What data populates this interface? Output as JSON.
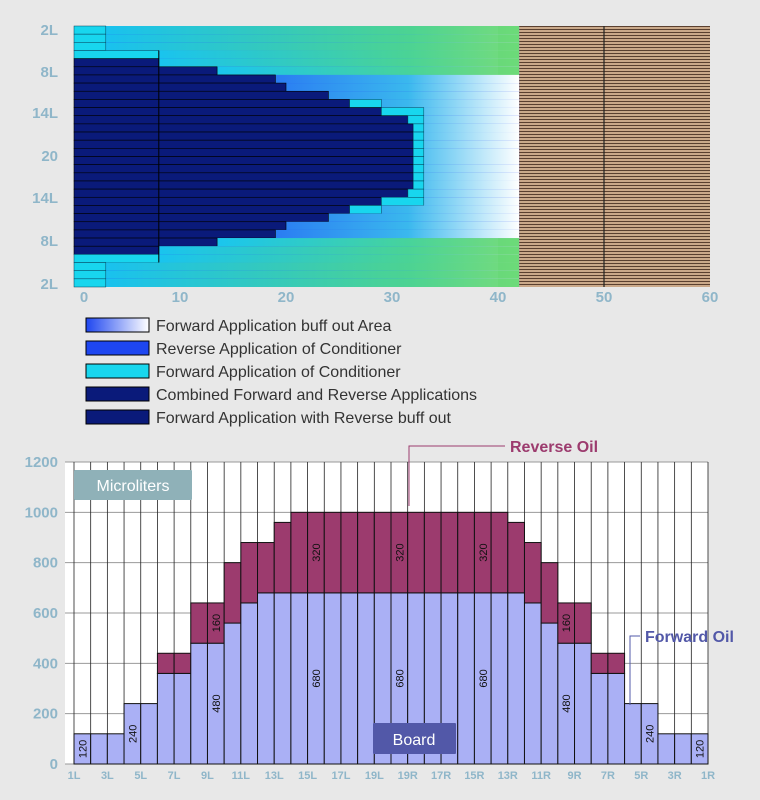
{
  "chart_data": [
    {
      "type": "heatmap",
      "x_ticks": [
        "0",
        "10",
        "20",
        "30",
        "40",
        "50",
        "60"
      ],
      "y_labels": [
        "2L",
        "8L",
        "14L",
        "20",
        "14L",
        "8L",
        "2L"
      ],
      "xlim": [
        0,
        60
      ],
      "legend": [
        "Forward Application buff out Area",
        "Reverse Application of Conditioner",
        "Forward Application of Conditioner",
        "Combined Forward and Reverse Applications",
        "Forward Application with Reverse buff out"
      ],
      "colors": {
        "navy": "#0a1a7a",
        "cyan": "#18d6ee",
        "blue": "#1e46f0",
        "green": "#5cd66a",
        "wood": "#c8a888"
      },
      "rows": [
        {
          "navy": 0,
          "cyan": 3,
          "fade_end": 42
        },
        {
          "navy": 0,
          "cyan": 3,
          "fade_end": 42
        },
        {
          "navy": 0,
          "cyan": 3,
          "fade_end": 42
        },
        {
          "navy": 0,
          "cyan": 8,
          "fade_end": 42
        },
        {
          "navy": 8,
          "cyan": 8,
          "fade_end": 42
        },
        {
          "navy": 13.5,
          "cyan": 13.5,
          "fade_end": 42
        },
        {
          "navy": 19,
          "cyan": 19,
          "fade_end": 42
        },
        {
          "navy": 20,
          "cyan": 20,
          "fade_end": 42
        },
        {
          "navy": 24,
          "cyan": 24,
          "fade_end": 42
        },
        {
          "navy": 26,
          "cyan": 29,
          "fade_end": 42
        },
        {
          "navy": 29,
          "cyan": 33,
          "fade_end": 42
        },
        {
          "navy": 31.5,
          "cyan": 33,
          "fade_end": 42
        },
        {
          "navy": 32,
          "cyan": 33,
          "fade_end": 42
        },
        {
          "navy": 32,
          "cyan": 33,
          "fade_end": 42
        },
        {
          "navy": 32,
          "cyan": 33,
          "fade_end": 42
        },
        {
          "navy": 32,
          "cyan": 33,
          "fade_end": 42
        },
        {
          "navy": 32,
          "cyan": 33,
          "fade_end": 42
        },
        {
          "navy": 32,
          "cyan": 33,
          "fade_end": 42
        },
        {
          "navy": 32,
          "cyan": 33,
          "fade_end": 42
        },
        {
          "navy": 32,
          "cyan": 33,
          "fade_end": 42
        },
        {
          "navy": 31.5,
          "cyan": 33,
          "fade_end": 42
        },
        {
          "navy": 29,
          "cyan": 33,
          "fade_end": 42
        },
        {
          "navy": 26,
          "cyan": 29,
          "fade_end": 42
        },
        {
          "navy": 24,
          "cyan": 24,
          "fade_end": 42
        },
        {
          "navy": 20,
          "cyan": 20,
          "fade_end": 42
        },
        {
          "navy": 19,
          "cyan": 19,
          "fade_end": 42
        },
        {
          "navy": 13.5,
          "cyan": 13.5,
          "fade_end": 42
        },
        {
          "navy": 8,
          "cyan": 8,
          "fade_end": 42
        },
        {
          "navy": 0,
          "cyan": 8,
          "fade_end": 42
        },
        {
          "navy": 0,
          "cyan": 3,
          "fade_end": 42
        },
        {
          "navy": 0,
          "cyan": 3,
          "fade_end": 42
        },
        {
          "navy": 0,
          "cyan": 3,
          "fade_end": 42
        }
      ]
    },
    {
      "type": "bar",
      "stacked": true,
      "categories": [
        "1L",
        "2L",
        "3L",
        "4L",
        "5L",
        "6L",
        "7L",
        "8L",
        "9L",
        "10L",
        "11L",
        "12L",
        "13L",
        "14L",
        "15L",
        "16L",
        "17L",
        "18L",
        "19L",
        "20",
        "19R",
        "18R",
        "17R",
        "16R",
        "15R",
        "14R",
        "13R",
        "12R",
        "11R",
        "10R",
        "9R",
        "8R",
        "7R",
        "6R",
        "5R",
        "4R",
        "3R",
        "2R",
        "1R"
      ],
      "x_tick_labels": [
        "1L",
        "3L",
        "5L",
        "7L",
        "9L",
        "11L",
        "13L",
        "15L",
        "17L",
        "19L",
        "19R",
        "17R",
        "15R",
        "13R",
        "11R",
        "9R",
        "7R",
        "5R",
        "3R",
        "1R"
      ],
      "series": [
        {
          "name": "Forward Oil",
          "color": "#aab0f5",
          "values": [
            120,
            120,
            120,
            240,
            240,
            360,
            360,
            480,
            480,
            560,
            640,
            680,
            680,
            680,
            680,
            680,
            680,
            680,
            680,
            680,
            680,
            680,
            680,
            680,
            680,
            680,
            680,
            640,
            560,
            480,
            480,
            360,
            360,
            240,
            240,
            120,
            120,
            120,
            0
          ]
        },
        {
          "name": "Reverse Oil",
          "color": "#9c3b6e",
          "values": [
            0,
            0,
            0,
            0,
            0,
            80,
            80,
            160,
            160,
            240,
            240,
            200,
            280,
            320,
            320,
            320,
            320,
            320,
            320,
            320,
            320,
            320,
            320,
            320,
            320,
            320,
            280,
            240,
            240,
            160,
            160,
            80,
            80,
            0,
            0,
            0,
            0,
            0,
            0
          ]
        }
      ],
      "data_labels": {
        "forward": [
          {
            "i": 0,
            "text": "120"
          },
          {
            "i": 3,
            "text": "240"
          },
          {
            "i": 8,
            "text": "480"
          },
          {
            "i": 14,
            "text": "680"
          },
          {
            "i": 19,
            "text": "680"
          },
          {
            "i": 24,
            "text": "680"
          },
          {
            "i": 29,
            "text": "480"
          },
          {
            "i": 34,
            "text": "240"
          },
          {
            "i": 37,
            "text": "120"
          }
        ],
        "reverse": [
          {
            "i": 8,
            "text": "160"
          },
          {
            "i": 14,
            "text": "320"
          },
          {
            "i": 19,
            "text": "320"
          },
          {
            "i": 24,
            "text": "320"
          },
          {
            "i": 29,
            "text": "160"
          }
        ]
      },
      "y_ticks": [
        "0",
        "200",
        "400",
        "600",
        "800",
        "1000",
        "1200"
      ],
      "ylim": [
        0,
        1200
      ],
      "annotations": {
        "ylabel_box": "Microliters",
        "xlabel_box": "Board",
        "reverse_callout": "Reverse Oil",
        "forward_callout": "Forward Oil"
      }
    }
  ]
}
